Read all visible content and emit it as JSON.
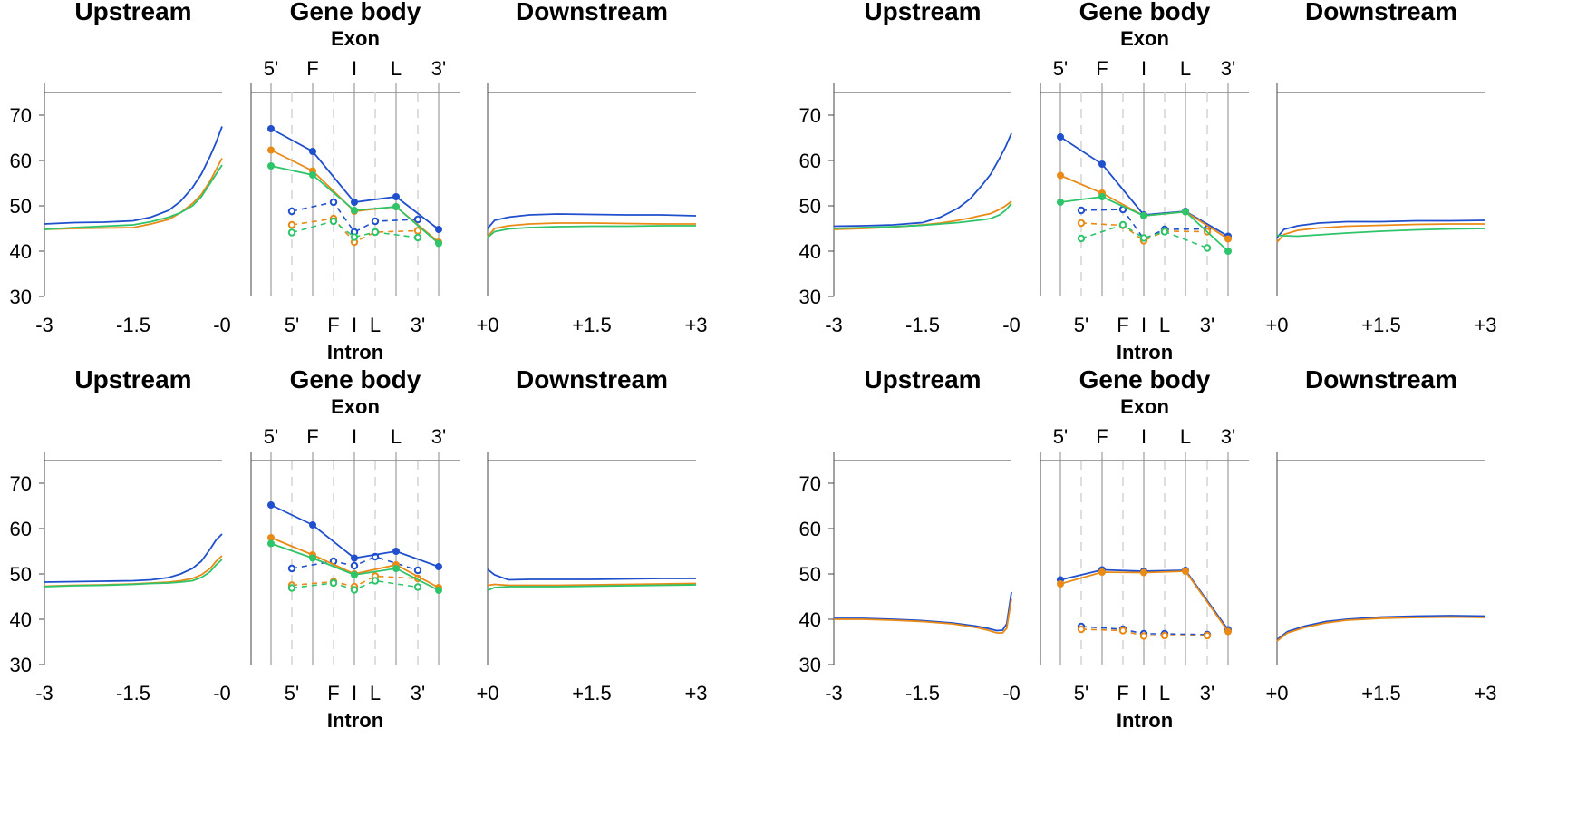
{
  "chart_data": {
    "type": "line",
    "ylim": [
      30,
      75
    ],
    "y_ticks": [
      30,
      40,
      50,
      60,
      70
    ],
    "colors": {
      "blue": "#1f4fcc",
      "orange": "#e98a17",
      "green": "#2ec46a",
      "divider": "#8a8a8a",
      "dash_divider": "#d4d4d4"
    },
    "titles": {
      "upstream": "Upstream",
      "genebody": "Gene body",
      "downstream": "Downstream"
    },
    "exon_label": "Exon",
    "intron_label": "Intron",
    "upstream_ticks": [
      "-3",
      "-1.5",
      "-0"
    ],
    "downstream_ticks": [
      "+0",
      "+1.5",
      "+3"
    ],
    "exon_ticks": [
      "5'",
      "F",
      "I",
      "L",
      "3'"
    ],
    "intron_ticks": [
      "5'",
      "F",
      "I",
      "L",
      "3'"
    ],
    "panels": [
      {
        "upstream": {
          "x": [
            -3,
            -2.5,
            -2,
            -1.5,
            -1.2,
            -0.9,
            -0.7,
            -0.5,
            -0.35,
            -0.2,
            -0.1,
            0
          ],
          "series": [
            {
              "color": "blue",
              "values": [
                46,
                46.3,
                46.4,
                46.7,
                47.5,
                49,
                51,
                54,
                57,
                61,
                64,
                67.5
              ]
            },
            {
              "color": "orange",
              "values": [
                44.8,
                45,
                45.1,
                45.2,
                46,
                47,
                48.5,
                50.5,
                52.5,
                55.5,
                58,
                60.5
              ]
            },
            {
              "color": "green",
              "values": [
                44.8,
                45.2,
                45.5,
                45.8,
                46.5,
                47.5,
                48.5,
                50,
                52,
                55,
                57,
                59
              ]
            }
          ]
        },
        "genebody": {
          "exon_positions": [
            "5'",
            "F",
            "I",
            "L",
            "3'"
          ],
          "exon_series": [
            {
              "color": "blue",
              "values": [
                67,
                62,
                50.8,
                52,
                44.8
              ]
            },
            {
              "color": "orange",
              "values": [
                62.3,
                57.7,
                48.8,
                49.8,
                42
              ]
            },
            {
              "color": "green",
              "values": [
                58.8,
                56.8,
                49,
                49.8,
                41.7
              ]
            }
          ],
          "intron_positions": [
            "5'",
            "F",
            "I",
            "L",
            "3'"
          ],
          "intron_series": [
            {
              "color": "blue",
              "values": [
                48.8,
                50.8,
                44.2,
                46.6,
                47
              ]
            },
            {
              "color": "orange",
              "values": [
                45.8,
                47.2,
                42,
                44.2,
                44.5
              ]
            },
            {
              "color": "green",
              "values": [
                44.1,
                46.6,
                43.1,
                44.2,
                43
              ]
            }
          ]
        },
        "downstream": {
          "x": [
            0,
            0.1,
            0.3,
            0.6,
            1,
            1.5,
            2,
            2.5,
            3
          ],
          "series": [
            {
              "color": "blue",
              "values": [
                45,
                46.8,
                47.5,
                48,
                48.2,
                48.1,
                48,
                48,
                47.8
              ]
            },
            {
              "color": "orange",
              "values": [
                43.2,
                45,
                45.6,
                46,
                46.2,
                46.2,
                46.1,
                46,
                46
              ]
            },
            {
              "color": "green",
              "values": [
                43,
                44.3,
                44.9,
                45.2,
                45.4,
                45.5,
                45.5,
                45.6,
                45.6
              ]
            }
          ]
        }
      },
      {
        "upstream": {
          "x": [
            -3,
            -2.5,
            -2,
            -1.5,
            -1.2,
            -0.9,
            -0.7,
            -0.5,
            -0.35,
            -0.2,
            -0.1,
            0
          ],
          "series": [
            {
              "color": "blue",
              "values": [
                45.5,
                45.6,
                45.8,
                46.3,
                47.5,
                49.5,
                51.5,
                54.5,
                57,
                60.5,
                63,
                66
              ]
            },
            {
              "color": "orange",
              "values": [
                44.8,
                45,
                45.3,
                45.8,
                46.2,
                46.8,
                47.3,
                47.9,
                48.3,
                49.2,
                50,
                51
              ]
            },
            {
              "color": "green",
              "values": [
                45,
                45.2,
                45.4,
                45.7,
                46,
                46.3,
                46.6,
                46.9,
                47.2,
                48,
                49,
                50.5
              ]
            }
          ]
        },
        "genebody": {
          "exon_positions": [
            "5'",
            "F",
            "I",
            "L",
            "3'"
          ],
          "exon_series": [
            {
              "color": "blue",
              "values": [
                65.2,
                59.2,
                48,
                48.8,
                43.3
              ]
            },
            {
              "color": "orange",
              "values": [
                56.7,
                52.8,
                47.8,
                48.7,
                42.7
              ]
            },
            {
              "color": "green",
              "values": [
                50.8,
                52,
                47.8,
                48.7,
                40
              ]
            }
          ],
          "intron_positions": [
            "5'",
            "F",
            "I",
            "L",
            "3'"
          ],
          "intron_series": [
            {
              "color": "blue",
              "values": [
                49,
                49.2,
                42.7,
                44.8,
                44.9
              ]
            },
            {
              "color": "orange",
              "values": [
                46.2,
                45.7,
                42.3,
                44.4,
                44.3
              ]
            },
            {
              "color": "green",
              "values": [
                42.8,
                45.8,
                42.9,
                44.3,
                40.7
              ]
            }
          ]
        },
        "downstream": {
          "x": [
            0,
            0.1,
            0.3,
            0.6,
            1,
            1.5,
            2,
            2.5,
            3
          ],
          "series": [
            {
              "color": "blue",
              "values": [
                43,
                44.8,
                45.6,
                46.2,
                46.5,
                46.5,
                46.7,
                46.7,
                46.8
              ]
            },
            {
              "color": "orange",
              "values": [
                42,
                43.7,
                44.6,
                45.1,
                45.5,
                45.7,
                45.9,
                46,
                46
              ]
            },
            {
              "color": "green",
              "values": [
                43.5,
                43.4,
                43.3,
                43.6,
                44,
                44.4,
                44.7,
                44.9,
                45
              ]
            }
          ]
        }
      },
      {
        "upstream": {
          "x": [
            -3,
            -2.5,
            -2,
            -1.5,
            -1.2,
            -0.9,
            -0.7,
            -0.5,
            -0.35,
            -0.2,
            -0.1,
            0
          ],
          "series": [
            {
              "color": "blue",
              "values": [
                48.2,
                48.3,
                48.4,
                48.5,
                48.7,
                49.2,
                50,
                51.2,
                52.8,
                55.5,
                57.5,
                58.8
              ]
            },
            {
              "color": "orange",
              "values": [
                47.3,
                47.5,
                47.6,
                47.8,
                48,
                48.2,
                48.5,
                49,
                49.8,
                51.2,
                52.8,
                54
              ]
            },
            {
              "color": "green",
              "values": [
                47.2,
                47.4,
                47.5,
                47.7,
                47.9,
                48,
                48.2,
                48.5,
                49.2,
                50.5,
                52,
                53.2
              ]
            }
          ]
        },
        "genebody": {
          "exon_positions": [
            "5'",
            "F",
            "I",
            "L",
            "3'"
          ],
          "exon_series": [
            {
              "color": "blue",
              "values": [
                65.2,
                60.8,
                53.5,
                55,
                51.6
              ]
            },
            {
              "color": "orange",
              "values": [
                58,
                54.2,
                50,
                52,
                47
              ]
            },
            {
              "color": "green",
              "values": [
                56.7,
                53.5,
                49.8,
                51.2,
                46.4
              ]
            }
          ],
          "intron_positions": [
            "5'",
            "F",
            "I",
            "L",
            "3'"
          ],
          "intron_series": [
            {
              "color": "blue",
              "values": [
                51.2,
                52.8,
                51.8,
                53.8,
                50.8
              ]
            },
            {
              "color": "orange",
              "values": [
                47.5,
                48.3,
                47.2,
                49.5,
                49
              ]
            },
            {
              "color": "green",
              "values": [
                46.9,
                48,
                46.5,
                48.5,
                47.1
              ]
            }
          ]
        },
        "downstream": {
          "x": [
            0,
            0.1,
            0.3,
            0.6,
            1,
            1.5,
            2,
            2.5,
            3
          ],
          "series": [
            {
              "color": "blue",
              "values": [
                51,
                49.8,
                48.7,
                48.8,
                48.8,
                48.8,
                48.9,
                49,
                49
              ]
            },
            {
              "color": "orange",
              "values": [
                47.5,
                47.7,
                47.5,
                47.5,
                47.5,
                47.6,
                47.7,
                47.8,
                47.9
              ]
            },
            {
              "color": "green",
              "values": [
                46.4,
                47,
                47.2,
                47.2,
                47.2,
                47.3,
                47.4,
                47.5,
                47.6
              ]
            }
          ]
        }
      },
      {
        "upstream": {
          "x": [
            -3,
            -2.5,
            -2,
            -1.5,
            -1,
            -0.6,
            -0.4,
            -0.25,
            -0.15,
            -0.08,
            0
          ],
          "series": [
            {
              "color": "blue",
              "values": [
                40.2,
                40.2,
                40,
                39.7,
                39.2,
                38.5,
                38,
                37.5,
                37.6,
                39,
                46
              ]
            },
            {
              "color": "orange",
              "values": [
                40,
                40,
                39.8,
                39.5,
                39,
                38.2,
                37.6,
                37,
                37,
                38,
                44.5
              ]
            }
          ]
        },
        "genebody": {
          "exon_positions": [
            "5'",
            "F",
            "I",
            "L",
            "3'"
          ],
          "exon_series": [
            {
              "color": "blue",
              "values": [
                48.7,
                50.9,
                50.6,
                50.8,
                37.7
              ]
            },
            {
              "color": "orange",
              "values": [
                47.8,
                50.4,
                50.3,
                50.6,
                37.3
              ]
            }
          ],
          "intron_positions": [
            "5'",
            "F",
            "I",
            "L",
            "3'"
          ],
          "intron_series": [
            {
              "color": "blue",
              "values": [
                38.4,
                37.8,
                36.8,
                36.8,
                36.6
              ]
            },
            {
              "color": "orange",
              "values": [
                37.8,
                37.5,
                36.3,
                36.4,
                36.4
              ]
            }
          ]
        },
        "downstream": {
          "x": [
            0,
            0.15,
            0.4,
            0.7,
            1,
            1.5,
            2,
            2.5,
            3
          ],
          "series": [
            {
              "color": "blue",
              "values": [
                35.5,
                37.3,
                38.5,
                39.5,
                40,
                40.5,
                40.7,
                40.8,
                40.7
              ]
            },
            {
              "color": "orange",
              "values": [
                35.2,
                37,
                38.2,
                39.2,
                39.8,
                40.2,
                40.4,
                40.5,
                40.4
              ]
            }
          ]
        }
      }
    ]
  }
}
